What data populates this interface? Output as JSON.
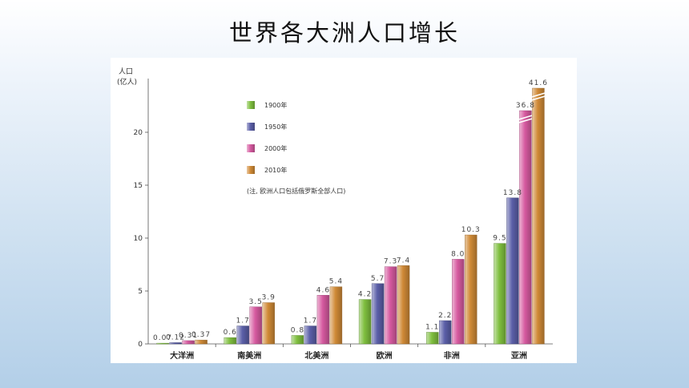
{
  "title": "世界各大洲人口增长",
  "chart_data": {
    "type": "bar",
    "ylabel_line1": "人口",
    "ylabel_line2": "(亿人)",
    "y_ticks": [
      0,
      5,
      10,
      15,
      20
    ],
    "ylim": [
      0,
      25
    ],
    "axis_break": true,
    "categories": [
      "大洋洲",
      "南美洲",
      "北美洲",
      "欧洲",
      "非洲",
      "亚洲"
    ],
    "series": [
      {
        "name": "1900年",
        "color": "#7fbf3f",
        "values": [
          0.07,
          0.6,
          0.8,
          4.2,
          1.1,
          9.5
        ],
        "labels": [
          "0.07",
          "0.6",
          "0.8",
          "4.2",
          "1.1",
          "9.5"
        ]
      },
      {
        "name": "1950年",
        "color": "#5b5fa8",
        "values": [
          0.12,
          1.7,
          1.7,
          5.7,
          2.2,
          13.8
        ],
        "labels": [
          "0.12",
          "1.7",
          "1.7",
          "5.7",
          "2.2",
          "13.8"
        ]
      },
      {
        "name": "2000年",
        "color": "#d65aa0",
        "values": [
          0.31,
          3.5,
          4.6,
          7.3,
          8.0,
          36.8
        ],
        "labels": [
          "0.31",
          "3.5",
          "4.6",
          "7.3",
          "8.0",
          "36.8"
        ]
      },
      {
        "name": "2010年",
        "color": "#d08a36",
        "values": [
          0.37,
          3.9,
          5.4,
          7.4,
          10.3,
          41.6
        ],
        "labels": [
          "0.37",
          "3.9",
          "5.4",
          "7.4",
          "10.3",
          "41.6"
        ]
      }
    ],
    "note": "(注, 欧洲人口包括俄罗斯全部人口)",
    "legend_position": "top-left"
  }
}
